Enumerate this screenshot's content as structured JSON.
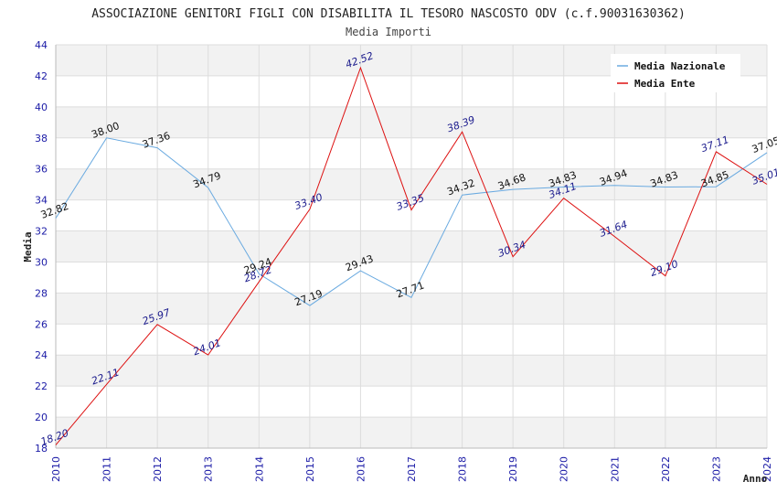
{
  "chart_data": {
    "type": "line",
    "title": "ASSOCIAZIONE GENITORI FIGLI CON DISABILITA IL TESORO NASCOSTO ODV (c.f.90031630362)",
    "subtitle": "Media Importi",
    "xlabel": "Anno",
    "ylabel": "Media",
    "ylim": [
      18,
      44
    ],
    "yticks": [
      18,
      20,
      22,
      24,
      26,
      28,
      30,
      32,
      34,
      36,
      38,
      40,
      42,
      44
    ],
    "x": [
      "2010",
      "2011",
      "2012",
      "2013",
      "2014",
      "2015",
      "2016",
      "2017",
      "2018",
      "2019",
      "2020",
      "2021",
      "2022",
      "2023",
      "2024"
    ],
    "grid": true,
    "legend_position": "top-right",
    "series": [
      {
        "name": "Media Nazionale",
        "color": "#6aaae0",
        "values": [
          32.82,
          38.0,
          37.36,
          34.79,
          29.24,
          27.19,
          29.43,
          27.71,
          34.32,
          34.68,
          34.83,
          34.94,
          34.83,
          34.85,
          37.05
        ],
        "labels": [
          "32.82",
          "38.00",
          "37.36",
          "34.79",
          "29.24",
          "27.19",
          "29.43",
          "27.71",
          "34.32",
          "34.68",
          "34.83",
          "34.94",
          "34.83",
          "34.85",
          "37.05"
        ]
      },
      {
        "name": "Media Ente",
        "color": "#dd1111",
        "values": [
          18.2,
          22.11,
          25.97,
          24.01,
          28.72,
          33.4,
          42.52,
          33.35,
          38.39,
          30.34,
          34.11,
          31.64,
          29.1,
          37.11,
          35.01
        ],
        "labels": [
          "18.20",
          "22.11",
          "25.97",
          "24.01",
          "28.72",
          "33.40",
          "42.52",
          "33.35",
          "38.39",
          "30.34",
          "34.11",
          "31.64",
          "29.10",
          "37.11",
          "35.01"
        ]
      }
    ]
  }
}
